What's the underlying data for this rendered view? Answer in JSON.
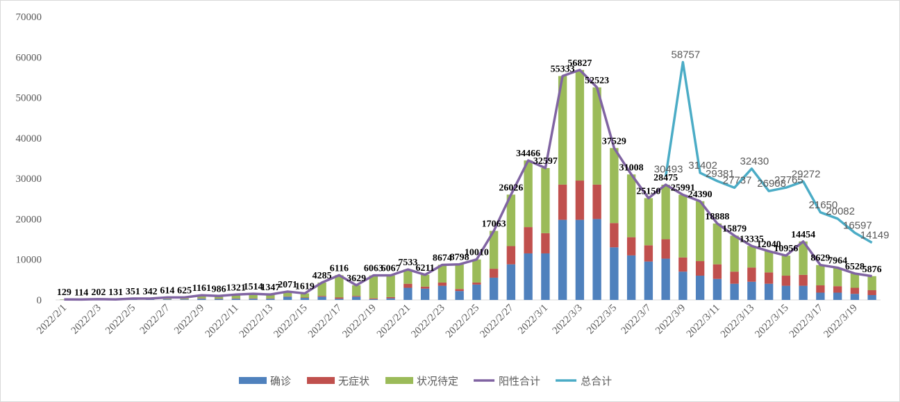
{
  "chart_data": {
    "type": "bar",
    "categories": [
      "2022/2/1",
      null,
      "2022/2/3",
      null,
      "2022/2/5",
      null,
      "2022/2/7",
      null,
      "2022/2/9",
      null,
      "2022/2/11",
      null,
      "2022/2/13",
      null,
      "2022/2/15",
      null,
      "2022/2/17",
      null,
      "2022/2/19",
      null,
      "2022/2/21",
      null,
      "2022/2/23",
      null,
      "2022/2/25",
      null,
      "2022/2/27",
      null,
      "2022/3/1",
      null,
      "2022/3/3",
      null,
      "2022/3/5",
      null,
      "2022/3/7",
      null,
      "2022/3/9",
      null,
      "2022/3/11",
      null,
      "2022/3/13",
      null,
      "2022/3/15",
      null,
      "2022/3/17",
      null,
      "2022/3/19",
      null
    ],
    "series": [
      {
        "name": "确诊",
        "color": "#4f81bd",
        "stacked": true,
        "values": [
          40,
          30,
          50,
          40,
          100,
          100,
          150,
          150,
          300,
          250,
          300,
          300,
          300,
          800,
          500,
          800,
          300,
          800,
          200,
          400,
          3000,
          2800,
          3500,
          2200,
          3800,
          5500,
          8800,
          11500,
          11500,
          19800,
          19800,
          20000,
          13000,
          11000,
          9500,
          10200,
          7000,
          6000,
          5200,
          4000,
          4500,
          4000,
          3500,
          3500,
          1800,
          1800,
          1500,
          1200
        ]
      },
      {
        "name": "无症状",
        "color": "#c0504d",
        "stacked": true,
        "values": [
          10,
          10,
          20,
          10,
          30,
          30,
          50,
          50,
          100,
          80,
          100,
          100,
          100,
          100,
          100,
          200,
          300,
          200,
          200,
          300,
          1000,
          500,
          800,
          500,
          500,
          2200,
          4500,
          6500,
          5000,
          8700,
          9700,
          8500,
          6000,
          4500,
          4000,
          4800,
          3500,
          3600,
          3600,
          3000,
          3500,
          2800,
          2500,
          2700,
          1800,
          1600,
          1500,
          1200
        ]
      },
      {
        "name": "状况待定",
        "color": "#9bbb59",
        "stacked": true,
        "values": [
          79,
          74,
          132,
          81,
          221,
          212,
          414,
          425,
          761,
          656,
          921,
          1114,
          947,
          1171,
          1019,
          3285,
          5516,
          2629,
          5663,
          5367,
          3533,
          2911,
          4374,
          6098,
          5710,
          9363,
          12726,
          16466,
          16097,
          26833,
          27327,
          24023,
          18529,
          15508,
          11650,
          13475,
          15491,
          14790,
          10088,
          8879,
          5335,
          5240,
          4956,
          8254,
          5029,
          4564,
          3528,
          3476
        ]
      },
      {
        "name": "阳性合计",
        "color": "#8064a2",
        "kind": "line",
        "values": [
          129,
          114,
          202,
          131,
          351,
          342,
          614,
          625,
          1161,
          986,
          1321,
          1514,
          1347,
          2071,
          1619,
          4285,
          6116,
          3629,
          6063,
          6067,
          7533,
          6211,
          8674,
          8798,
          10010,
          17063,
          26026,
          34466,
          32597,
          55333,
          56827,
          52523,
          37529,
          31008,
          25150,
          28475,
          25991,
          24390,
          18888,
          15879,
          13335,
          12040,
          10956,
          14454,
          8629,
          7964,
          6528,
          5876
        ]
      },
      {
        "name": "总合计",
        "color": "#4bacc6",
        "kind": "line",
        "values": [
          null,
          null,
          null,
          null,
          null,
          null,
          null,
          null,
          null,
          null,
          null,
          null,
          null,
          null,
          null,
          null,
          null,
          null,
          null,
          null,
          null,
          null,
          null,
          null,
          null,
          null,
          null,
          null,
          null,
          null,
          null,
          null,
          null,
          null,
          null,
          30493,
          58757,
          31402,
          29381,
          27737,
          32430,
          26908,
          27765,
          29272,
          21650,
          20082,
          16597,
          14149
        ]
      }
    ],
    "ylim": [
      0,
      70000
    ],
    "yticks": [
      0,
      10000,
      20000,
      30000,
      40000,
      50000,
      60000,
      70000
    ],
    "grid": false,
    "legend": "bottom"
  }
}
